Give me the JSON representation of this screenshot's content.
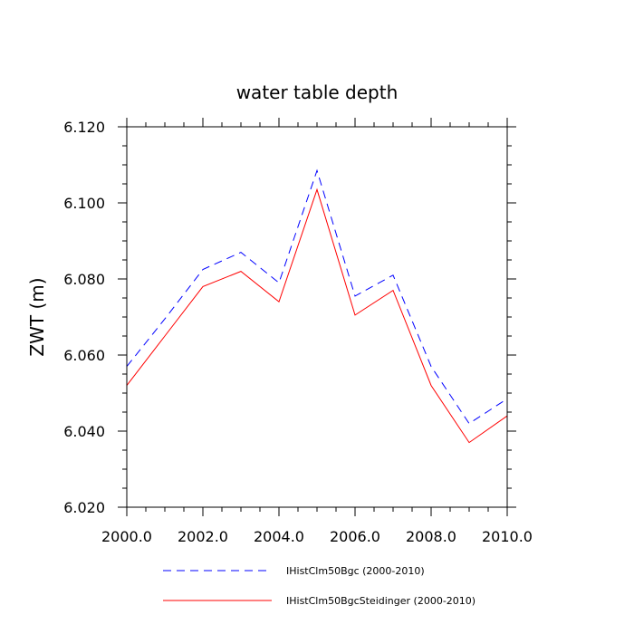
{
  "chart_data": {
    "type": "line",
    "title": "water table depth",
    "xlabel": "",
    "ylabel": "ZWT  (m)",
    "xlim": [
      2000,
      2010
    ],
    "ylim": [
      6.02,
      6.12
    ],
    "x_ticks": [
      "2000.0",
      "2002.0",
      "2004.0",
      "2006.0",
      "2008.0",
      "2010.0"
    ],
    "y_ticks": [
      "6.020",
      "6.040",
      "6.060",
      "6.080",
      "6.100",
      "6.120"
    ],
    "grid": false,
    "legend_position": "bottom",
    "x": [
      2000,
      2001,
      2002,
      2003,
      2004,
      2005,
      2006,
      2007,
      2008,
      2009,
      2010
    ],
    "series": [
      {
        "name": "IHistClm50Bgc (2000-2010)",
        "color": "#0000ff",
        "style": "dashed",
        "values": [
          6.057,
          6.0695,
          6.0825,
          6.087,
          6.079,
          6.1085,
          6.0755,
          6.081,
          6.057,
          6.042,
          6.0485
        ]
      },
      {
        "name": "IHistClm50BgcSteidinger (2000-2010)",
        "color": "#ff0000",
        "style": "solid",
        "values": [
          6.052,
          6.065,
          6.078,
          6.082,
          6.074,
          6.1035,
          6.0705,
          6.077,
          6.052,
          6.037,
          6.044
        ]
      }
    ]
  }
}
